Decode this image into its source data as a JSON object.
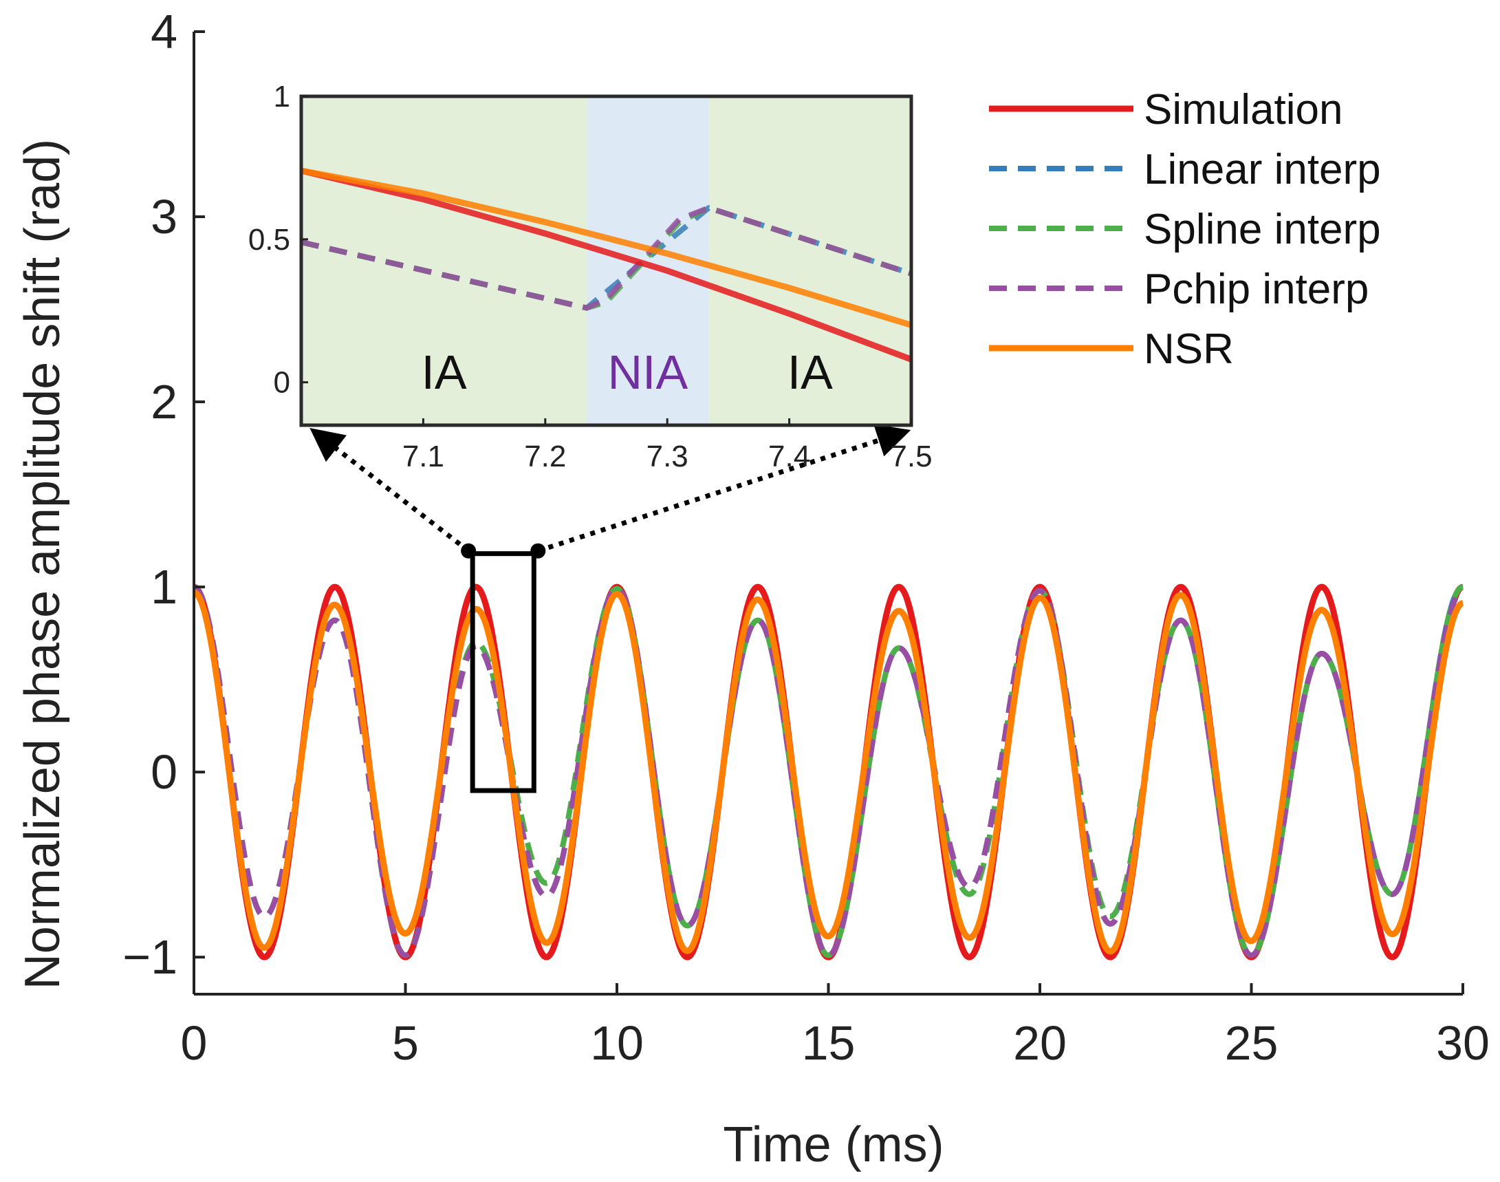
{
  "chart_data": [
    {
      "type": "line",
      "xlabel": "Time (ms)",
      "ylabel": "Normalized phase amplitude shift (rad)",
      "xlim": [
        0,
        30
      ],
      "ylim": [
        -1.2,
        4
      ],
      "xticks": [
        "0",
        "5",
        "10",
        "15",
        "20",
        "25",
        "30"
      ],
      "yticks": [
        "−1",
        "0",
        "1",
        "2",
        "3",
        "4"
      ],
      "grid": false,
      "legend_position": "top-right",
      "period_ms": 3.333,
      "series": [
        {
          "name": "Simulation",
          "color": "#e41a1c",
          "style": "solid",
          "description_values": {
            "amplitude": 1.0
          }
        },
        {
          "name": "Linear interp",
          "color": "#377eb8",
          "style": "dashed",
          "peak_values": [
            0.82,
            0.68,
            0.99,
            0.82,
            0.67,
            0.98,
            0.82,
            0.64,
            1.0
          ],
          "trough_values": [
            -0.78,
            -0.99,
            -0.67,
            -0.83,
            -0.99,
            -0.62,
            -0.82,
            -0.99,
            -0.66
          ]
        },
        {
          "name": "Spline interp",
          "color": "#4daf4a",
          "style": "dashed",
          "peak_values": [
            0.82,
            0.7,
            0.99,
            0.82,
            0.67,
            0.98,
            0.82,
            0.64,
            1.0
          ],
          "trough_values": [
            -0.78,
            -0.99,
            -0.6,
            -0.83,
            -0.99,
            -0.66,
            -0.78,
            -0.99,
            -0.66
          ]
        },
        {
          "name": "Pchip interp",
          "color": "#984ea3",
          "style": "dashed",
          "peak_values": [
            0.82,
            0.68,
            0.99,
            0.82,
            0.67,
            0.98,
            0.82,
            0.64,
            0.98
          ],
          "trough_values": [
            -0.78,
            -0.99,
            -0.67,
            -0.83,
            -0.99,
            -0.62,
            -0.82,
            -0.99,
            -0.66
          ]
        },
        {
          "name": "NSR",
          "color": "#ff7f00",
          "style": "solid",
          "description_values": {
            "amplitude": 0.95
          }
        }
      ],
      "zoom_box": {
        "x": [
          6.1,
          8.2
        ],
        "y": [
          -0.1,
          1.18
        ]
      }
    },
    {
      "type": "line",
      "role": "inset",
      "xlim": [
        7.0,
        7.5
      ],
      "ylim": [
        -0.15,
        1.0
      ],
      "xticks": [
        "7.1",
        "7.2",
        "7.3",
        "7.4",
        "7.5"
      ],
      "yticks": [
        "0",
        "0.5",
        "1"
      ],
      "regions": [
        {
          "label": "IA",
          "x": [
            7.0,
            7.234
          ],
          "color": "#e4efd9",
          "text_color": "#111111"
        },
        {
          "label": "NIA",
          "x": [
            7.234,
            7.334
          ],
          "color": "#ddeaf5",
          "text_color": "#7030a0"
        },
        {
          "label": "IA",
          "x": [
            7.334,
            7.5
          ],
          "color": "#e4efd9",
          "text_color": "#111111"
        }
      ],
      "series": [
        {
          "name": "Simulation",
          "color": "#e41a1c",
          "style": "solid",
          "x": [
            7.0,
            7.1,
            7.2,
            7.3,
            7.4,
            7.5
          ],
          "y": [
            0.74,
            0.64,
            0.52,
            0.39,
            0.24,
            0.08
          ]
        },
        {
          "name": "Linear interp",
          "color": "#377eb8",
          "style": "dashed",
          "x": [
            7.0,
            7.234,
            7.334,
            7.5
          ],
          "y": [
            0.49,
            0.26,
            0.61,
            0.38
          ]
        },
        {
          "name": "Spline interp",
          "color": "#4daf4a",
          "style": "dashed",
          "x": [
            7.0,
            7.234,
            7.25,
            7.28,
            7.31,
            7.334,
            7.5
          ],
          "y": [
            0.49,
            0.26,
            0.28,
            0.42,
            0.56,
            0.61,
            0.38
          ]
        },
        {
          "name": "Pchip interp",
          "color": "#984ea3",
          "style": "dashed",
          "x": [
            7.0,
            7.234,
            7.25,
            7.28,
            7.31,
            7.334,
            7.5
          ],
          "y": [
            0.49,
            0.26,
            0.29,
            0.43,
            0.57,
            0.61,
            0.38
          ]
        },
        {
          "name": "NSR",
          "color": "#ff7f00",
          "style": "solid",
          "x": [
            7.0,
            7.1,
            7.2,
            7.3,
            7.4,
            7.5
          ],
          "y": [
            0.74,
            0.66,
            0.56,
            0.45,
            0.33,
            0.2
          ]
        }
      ]
    }
  ],
  "legend": {
    "items": [
      {
        "label": "Simulation",
        "color": "#e41a1c",
        "style": "solid"
      },
      {
        "label": "Linear interp",
        "color": "#377eb8",
        "style": "dashed"
      },
      {
        "label": "Spline interp",
        "color": "#4daf4a",
        "style": "dashed"
      },
      {
        "label": "Pchip interp",
        "color": "#984ea3",
        "style": "dashed"
      },
      {
        "label": "NSR",
        "color": "#ff7f00",
        "style": "solid"
      }
    ]
  }
}
